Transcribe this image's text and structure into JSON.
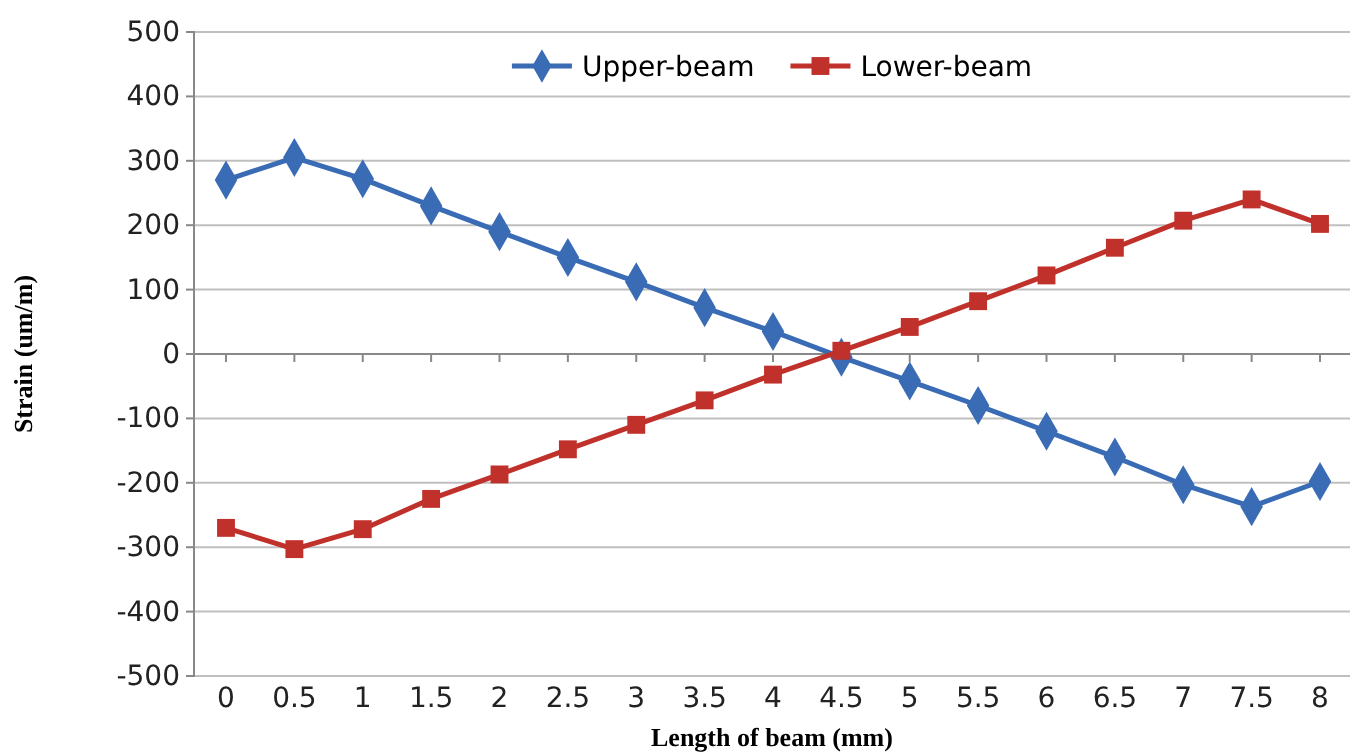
{
  "chart_data": {
    "type": "line",
    "xlabel": "Length of beam (mm)",
    "ylabel": "Strain (um/m)",
    "categories": [
      "0",
      "0.5",
      "1",
      "1.5",
      "2",
      "2.5",
      "3",
      "3.5",
      "4",
      "4.5",
      "5",
      "5.5",
      "6",
      "6.5",
      "7",
      "7.5",
      "8"
    ],
    "series": [
      {
        "name": "Upper-beam",
        "color": "#3a6bb5",
        "marker": "diamond",
        "values": [
          270,
          305,
          272,
          230,
          190,
          150,
          112,
          72,
          35,
          -5,
          -42,
          -80,
          -120,
          -160,
          -203,
          -237,
          -198
        ]
      },
      {
        "name": "Lower-beam",
        "color": "#c0312b",
        "marker": "square",
        "values": [
          -270,
          -303,
          -272,
          -225,
          -187,
          -148,
          -110,
          -72,
          -32,
          5,
          42,
          82,
          122,
          165,
          207,
          240,
          202
        ]
      }
    ],
    "ylim": [
      -500,
      500
    ],
    "yticks": [
      -500,
      -400,
      -300,
      -200,
      -100,
      0,
      100,
      200,
      300,
      400,
      500
    ],
    "grid": "y",
    "legend": "top"
  }
}
